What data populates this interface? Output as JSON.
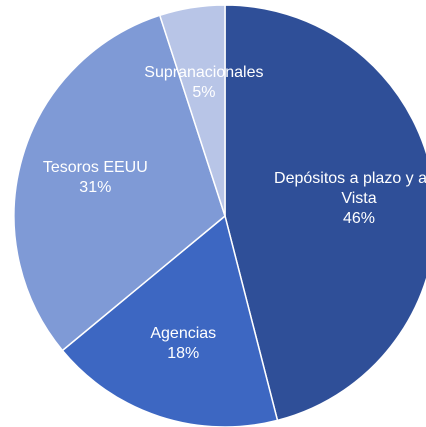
{
  "chart_data": {
    "type": "pie",
    "categories": [
      "Depósitos a plazo y a la Vista",
      "Agencias",
      "Tesoros EEUU",
      "Supranacionales"
    ],
    "values": [
      46,
      18,
      31,
      5
    ],
    "value_labels": [
      "46%",
      "18%",
      "31%",
      "5%"
    ],
    "colors": [
      "#2f4f98",
      "#3d67c2",
      "#7f9ad6",
      "#b8c5e7"
    ]
  }
}
